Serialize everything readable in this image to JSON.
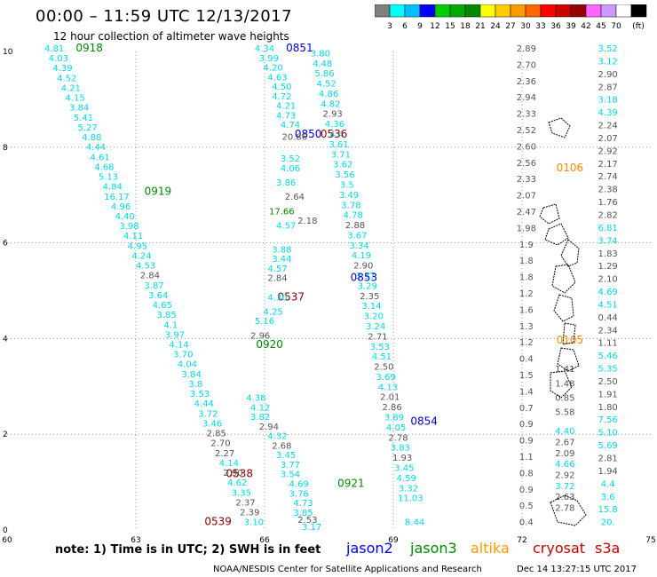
{
  "title": "00:00 – 11:59 UTC 12/13/2017",
  "subtitle": "12 hour collection of altimeter wave heights",
  "colorbar": {
    "colors": [
      "#808080",
      "#00ffff",
      "#00bfff",
      "#0000ff",
      "#00cc00",
      "#00aa00",
      "#008800",
      "#ffff00",
      "#ffcc00",
      "#ff9900",
      "#ff6600",
      "#ff0000",
      "#cc0000",
      "#990000",
      "#ff66ff",
      "#cc99ff",
      "#ffffff",
      "#000000"
    ],
    "ticks": [
      "3",
      "6",
      "9",
      "12",
      "15",
      "18",
      "21",
      "24",
      "27",
      "30",
      "33",
      "36",
      "39",
      "42",
      "45",
      "70",
      "(ft)"
    ]
  },
  "axes": {
    "x_ticks": [
      "60",
      "63",
      "66",
      "69",
      "72",
      "75"
    ],
    "y_ticks": [
      "0",
      "2",
      "4",
      "6",
      "8",
      "10"
    ]
  },
  "footer_note": "note: 1) Time is in UTC; 2) SWH is in feet",
  "legend": [
    {
      "name": "jason2",
      "color": "#0000ff"
    },
    {
      "name": "jason3",
      "color": "#008800"
    },
    {
      "name": "altika",
      "color": "#ff9900"
    },
    {
      "name": "cryosat",
      "color": "#cc0000"
    },
    {
      "name": "s3a",
      "color": "#cc0000"
    }
  ],
  "credit": "NOAA/NESDIS Center for Satellite Applications and Research",
  "generated": "Dec 14 13:27:15 UTC 2017",
  "colors": {
    "cyan": "#00d8e8",
    "gray": "#555555",
    "jason2": "#0000cc",
    "jason3": "#008800",
    "altika": "#ff8800",
    "cryosat": "#880000",
    "s3a": "#cc0000"
  },
  "tracks": [
    {
      "id": "0918",
      "sat": "jason3",
      "label_lon": 61.6,
      "label_lat": 10.0,
      "values": [
        "4.81",
        "4.03",
        "4.39",
        "4.52",
        "4.21",
        "4.15",
        "3.84",
        "5.41",
        "5.27",
        "4.88",
        "4.44",
        "4.61",
        "4.68",
        "5.13",
        "4.84",
        "16.17",
        "4.96",
        "4.40",
        "3.98",
        "4.11",
        "4.95",
        "4.24",
        "4.53",
        "2.84",
        "3.87",
        "3.64",
        "4.65",
        "3.85",
        "4.1",
        "3.97",
        "4.14",
        "3.70",
        "4.04",
        "3.84",
        "3.8",
        "3.53",
        "4.44",
        "3.72",
        "3.46",
        "2.85",
        "2.70",
        "2.27",
        "4.14",
        "2.90",
        "4.62",
        "3.35",
        "2.37",
        "2.39",
        "3.10"
      ],
      "start": [
        61.1,
        10.0
      ],
      "end": [
        65.75,
        0.1
      ]
    },
    {
      "id": "0851",
      "sat": "jason2",
      "label_lon": 66.5,
      "label_lat": 10.0,
      "values": [
        "3.80",
        "4.48",
        "5.86",
        "4.52",
        "4.86",
        "4.82",
        "2.93",
        "4.36",
        "4.4",
        "3.61",
        "3.71",
        "3.62",
        "3.56",
        "3.5",
        "3.49",
        "3.78",
        "4.78",
        "2.88",
        "3.67",
        "3.34",
        "4.19",
        "2.90",
        "3.37",
        "3.29",
        "2.35",
        "3.14",
        "3.20",
        "3.24",
        "2.71",
        "3.53",
        "4.51",
        "2.50",
        "3.69",
        "4.13",
        "2.01",
        "2.86",
        "3.89",
        "4.05",
        "2.78",
        "3.83",
        "1.93",
        "3.45",
        "4.59",
        "3.32",
        "11.03"
      ],
      "start": [
        67.3,
        9.9
      ],
      "end": [
        69.4,
        0.6
      ]
    },
    {
      "id": "0919",
      "sat": "jason3",
      "label_lon": 63.2,
      "label_lat": 7.0,
      "values": [],
      "start": [
        0,
        0
      ],
      "end": [
        0,
        0
      ]
    },
    {
      "id": "0536",
      "sat": "cryosat",
      "label_lon": 67.3,
      "label_lat": 8.2,
      "values": [],
      "start": [
        0,
        0
      ],
      "end": [
        0,
        0
      ]
    },
    {
      "id": "0850",
      "sat": "jason2",
      "label_lon": 66.7,
      "label_lat": 8.2,
      "values": [],
      "start": [
        0,
        0
      ],
      "end": [
        0,
        0
      ]
    },
    {
      "id": "0537",
      "sat": "cryosat",
      "label_lon": 66.3,
      "label_lat": 4.8,
      "values": [],
      "start": [
        0,
        0
      ],
      "end": [
        0,
        0
      ]
    },
    {
      "id": "0853",
      "sat": "jason2",
      "label_lon": 68.0,
      "label_lat": 5.2,
      "values": [],
      "start": [
        0,
        0
      ],
      "end": [
        0,
        0
      ]
    },
    {
      "id": "0920",
      "sat": "jason3",
      "label_lon": 65.8,
      "label_lat": 3.8,
      "values": [],
      "start": [
        0,
        0
      ],
      "end": [
        0,
        0
      ]
    },
    {
      "id": "0854",
      "sat": "jason2",
      "label_lon": 69.4,
      "label_lat": 2.2,
      "values": [],
      "start": [
        0,
        0
      ],
      "end": [
        0,
        0
      ]
    },
    {
      "id": "0538",
      "sat": "cryosat",
      "label_lon": 65.1,
      "label_lat": 1.1,
      "values": [],
      "start": [
        0,
        0
      ],
      "end": [
        0,
        0
      ]
    },
    {
      "id": "0921",
      "sat": "jason3",
      "label_lon": 67.7,
      "label_lat": 0.9,
      "values": [],
      "start": [
        0,
        0
      ],
      "end": [
        0,
        0
      ]
    },
    {
      "id": "0539",
      "sat": "cryosat",
      "label_lon": 64.6,
      "label_lat": 0.1,
      "values": [],
      "start": [
        0,
        0
      ],
      "end": [
        0,
        0
      ]
    },
    {
      "id": "0106",
      "sat": "altika",
      "label_lon": 72.8,
      "label_lat": 7.5,
      "values": [],
      "start": [
        0,
        0
      ],
      "end": [
        0,
        0
      ]
    },
    {
      "id": "0105",
      "sat": "altika",
      "label_lon": 72.8,
      "label_lat": 3.9,
      "values": [],
      "start": [
        0,
        0
      ],
      "end": [
        0,
        0
      ]
    }
  ],
  "side_columns": [
    {
      "name": "gray-col-a",
      "color": "gray",
      "lon": 72.1,
      "values": [
        "2.89",
        "2.70",
        "2.36",
        "2.94",
        "2.33",
        "2.52",
        "2.60",
        "2.56",
        "2.33",
        "2.07",
        "2.47",
        "1.98",
        "1.9",
        "1.8",
        "1.8",
        "1.2",
        "1.6",
        "1.3",
        "1.2",
        "0.4",
        "1.5",
        "1.4",
        "0.7",
        "0.9",
        "0.9",
        "1.1",
        "0.8",
        "0.9",
        "0.5",
        "0.4"
      ]
    },
    {
      "name": "mixed-col-b",
      "color": "cyan",
      "lon": 74.0,
      "values": [
        "3.52",
        "3.12",
        "2.90",
        "2.87",
        "3.18",
        "4.39",
        "2.24",
        "2.07",
        "2.92",
        "2.17",
        "2.74",
        "2.38",
        "1.76",
        "2.82",
        "6.81",
        "3.74",
        "1.83",
        "1.29",
        "2.10",
        "4.69",
        "4.51",
        "0.44",
        "2.34",
        "1.11",
        "5.46",
        "5.35",
        "2.50",
        "1.91",
        "1.80",
        "7.56",
        "5.10",
        "5.69",
        "2.81",
        "1.94",
        "4.4",
        "3.6",
        "15.8",
        "20."
      ]
    },
    {
      "name": "cyan-col-c",
      "color": "cyan",
      "lon": 73.0,
      "values": [
        "4.40",
        "2.67",
        "2.09",
        "4.66",
        "2.92",
        "3.72",
        "2.63",
        "2.78"
      ]
    },
    {
      "name": "gray-col-d",
      "color": "gray",
      "lon": 73.0,
      "values": [
        "1.41",
        "1.48",
        "0.85",
        "5.58"
      ]
    }
  ],
  "misc_labels": [
    {
      "text": "20.86",
      "color": "gray",
      "lon": 66.7,
      "lat": 8.15
    },
    {
      "text": "17.66",
      "color": "jason3",
      "lon": 66.4,
      "lat": 6.6
    },
    {
      "text": "2.18",
      "color": "gray",
      "lon": 67.0,
      "lat": 6.4
    },
    {
      "text": "2.64",
      "color": "gray",
      "lon": 66.7,
      "lat": 6.9
    },
    {
      "text": "4.57",
      "color": "cyan",
      "lon": 66.5,
      "lat": 6.3
    },
    {
      "text": "2.84",
      "color": "gray",
      "lon": 66.3,
      "lat": 5.2
    },
    {
      "text": "4.30",
      "color": "cyan",
      "lon": 66.3,
      "lat": 4.8
    },
    {
      "text": "4.25",
      "color": "cyan",
      "lon": 66.2,
      "lat": 4.5
    },
    {
      "text": "5.16",
      "color": "cyan",
      "lon": 66.0,
      "lat": 4.3
    },
    {
      "text": "2.96",
      "color": "gray",
      "lon": 65.9,
      "lat": 4.0
    },
    {
      "text": "4.38",
      "color": "cyan",
      "lon": 65.8,
      "lat": 2.7
    },
    {
      "text": "4.12",
      "color": "cyan",
      "lon": 65.9,
      "lat": 2.5
    },
    {
      "text": "3.82",
      "color": "cyan",
      "lon": 65.9,
      "lat": 2.3
    },
    {
      "text": "2.94",
      "color": "gray",
      "lon": 66.1,
      "lat": 2.1
    },
    {
      "text": "4.32",
      "color": "cyan",
      "lon": 66.3,
      "lat": 1.9
    },
    {
      "text": "2.68",
      "color": "gray",
      "lon": 66.4,
      "lat": 1.7
    },
    {
      "text": "3.45",
      "color": "cyan",
      "lon": 66.5,
      "lat": 1.5
    },
    {
      "text": "3.77",
      "color": "cyan",
      "lon": 66.6,
      "lat": 1.3
    },
    {
      "text": "3.54",
      "color": "cyan",
      "lon": 66.6,
      "lat": 1.1
    },
    {
      "text": "4.69",
      "color": "cyan",
      "lon": 66.8,
      "lat": 0.9
    },
    {
      "text": "3.76",
      "color": "cyan",
      "lon": 66.8,
      "lat": 0.7
    },
    {
      "text": "4.73",
      "color": "cyan",
      "lon": 66.9,
      "lat": 0.5
    },
    {
      "text": "3.85",
      "color": "cyan",
      "lon": 66.9,
      "lat": 0.3
    },
    {
      "text": "2.53",
      "color": "gray",
      "lon": 67.0,
      "lat": 0.15
    },
    {
      "text": "3.17",
      "color": "cyan",
      "lon": 67.1,
      "lat": 0.0
    },
    {
      "text": "8.44",
      "color": "cyan",
      "lon": 69.5,
      "lat": 0.1
    },
    {
      "text": "4.34",
      "color": "cyan",
      "lon": 66.0,
      "lat": 10.0
    },
    {
      "text": "3.99",
      "color": "cyan",
      "lon": 66.1,
      "lat": 9.8
    },
    {
      "text": "4.20",
      "color": "cyan",
      "lon": 66.2,
      "lat": 9.6
    },
    {
      "text": "4.63",
      "color": "cyan",
      "lon": 66.3,
      "lat": 9.4
    },
    {
      "text": "4.50",
      "color": "cyan",
      "lon": 66.4,
      "lat": 9.2
    },
    {
      "text": "4.72",
      "color": "cyan",
      "lon": 66.4,
      "lat": 9.0
    },
    {
      "text": "4.21",
      "color": "cyan",
      "lon": 66.5,
      "lat": 8.8
    },
    {
      "text": "4.73",
      "color": "cyan",
      "lon": 66.5,
      "lat": 8.6
    },
    {
      "text": "4.74",
      "color": "cyan",
      "lon": 66.6,
      "lat": 8.4
    },
    {
      "text": "3.52",
      "color": "cyan",
      "lon": 66.6,
      "lat": 7.7
    },
    {
      "text": "4.06",
      "color": "cyan",
      "lon": 66.6,
      "lat": 7.5
    },
    {
      "text": "3.86",
      "color": "cyan",
      "lon": 66.5,
      "lat": 7.2
    },
    {
      "text": "3.88",
      "color": "cyan",
      "lon": 66.4,
      "lat": 5.8
    },
    {
      "text": "3.44",
      "color": "cyan",
      "lon": 66.4,
      "lat": 5.6
    },
    {
      "text": "4.57",
      "color": "cyan",
      "lon": 66.3,
      "lat": 5.4
    }
  ]
}
